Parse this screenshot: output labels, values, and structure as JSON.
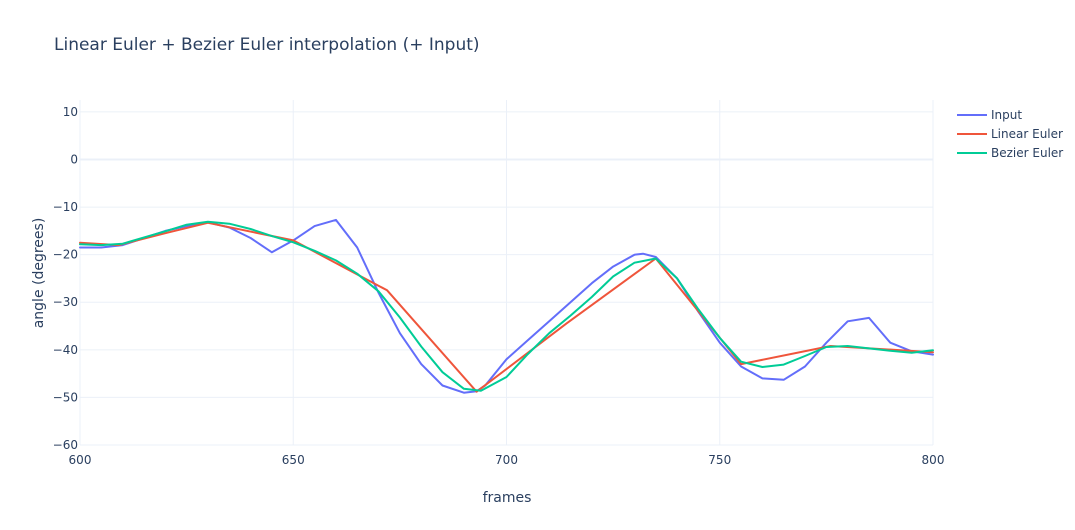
{
  "chart_data": {
    "type": "line",
    "title": "Linear Euler + Bezier Euler interpolation (+ Input)",
    "xlabel": "frames",
    "ylabel": "angle (degrees)",
    "xlim": [
      600,
      800
    ],
    "ylim": [
      -60,
      12.5
    ],
    "xticks": [
      600,
      650,
      700,
      750,
      800
    ],
    "yticks": [
      10,
      0,
      -10,
      -20,
      -30,
      -40,
      -50,
      -60
    ],
    "grid": true,
    "legend_position": "top-right",
    "series": [
      {
        "name": "Input",
        "color": "#636efa",
        "x": [
          600,
          605,
          610,
          615,
          620,
          625,
          630,
          635,
          640,
          645,
          650,
          655,
          660,
          665,
          670,
          675,
          680,
          685,
          690,
          693,
          695,
          700,
          705,
          710,
          715,
          720,
          725,
          730,
          732,
          735,
          740,
          745,
          750,
          755,
          760,
          765,
          770,
          775,
          780,
          785,
          790,
          795,
          800
        ],
        "y": [
          -18.5,
          -18.5,
          -18,
          -16.5,
          -15,
          -14,
          -13.2,
          -14.3,
          -16.5,
          -19.5,
          -17,
          -14,
          -12.7,
          -18.5,
          -28,
          -36.5,
          -43,
          -47.5,
          -49,
          -48.7,
          -47.5,
          -42,
          -38,
          -34,
          -30,
          -26,
          -22.5,
          -20,
          -19.8,
          -20.5,
          -25,
          -32,
          -38.5,
          -43.5,
          -46,
          -46.3,
          -43.5,
          -38.5,
          -34,
          -33.3,
          -38.5,
          -40.3,
          -41
        ]
      },
      {
        "name": "Linear Euler",
        "color": "#ef553b",
        "x": [
          600,
          609,
          620,
          630,
          650,
          672,
          693,
          714,
          735,
          755,
          776,
          800
        ],
        "y": [
          -17.5,
          -18,
          -15.5,
          -13.3,
          -17,
          -27.5,
          -48.8,
          -34.5,
          -20.8,
          -43,
          -39.2,
          -40.5
        ]
      },
      {
        "name": "Bezier Euler",
        "color": "#00cc96",
        "x": [
          600,
          605,
          610,
          615,
          620,
          625,
          630,
          635,
          640,
          645,
          650,
          655,
          660,
          665,
          670,
          675,
          680,
          685,
          690,
          694,
          700,
          705,
          710,
          715,
          720,
          725,
          730,
          735,
          740,
          745,
          750,
          755,
          760,
          765,
          770,
          775,
          780,
          785,
          790,
          795,
          800
        ],
        "y": [
          -17.8,
          -18,
          -17.7,
          -16.4,
          -15.1,
          -13.7,
          -13.1,
          -13.5,
          -14.6,
          -16.1,
          -17.4,
          -19.2,
          -21.2,
          -24,
          -27.7,
          -33.2,
          -39.3,
          -44.7,
          -48.2,
          -48.6,
          -45.7,
          -40.9,
          -36.5,
          -32.8,
          -28.9,
          -24.6,
          -21.7,
          -20.8,
          -25,
          -31.5,
          -37.5,
          -42.5,
          -43.6,
          -43.1,
          -41.3,
          -39.4,
          -39.2,
          -39.7,
          -40.2,
          -40.6,
          -40.1
        ]
      }
    ]
  }
}
